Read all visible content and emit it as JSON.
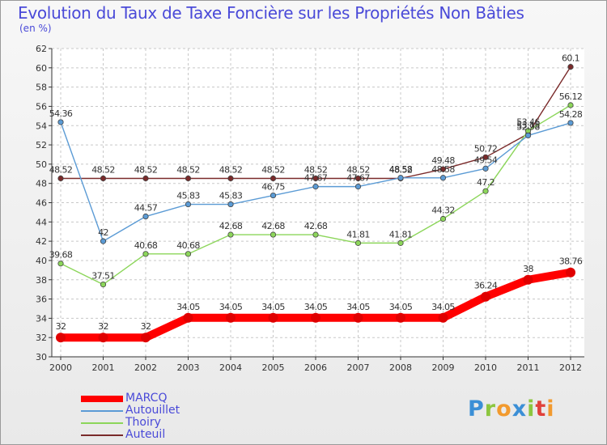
{
  "header": {
    "title": "Evolution du Taux de Taxe Foncière sur les Propriétés Non Bâties",
    "unit": "(en %)"
  },
  "logo": {
    "text": "Proxiti",
    "letters": [
      {
        "char": "P",
        "color": "#3b8fd6"
      },
      {
        "char": "r",
        "color": "#8cc63f"
      },
      {
        "char": "o",
        "color": "#f29a2e"
      },
      {
        "char": "x",
        "color": "#3b8fd6"
      },
      {
        "char": "i",
        "color": "#8cc63f"
      },
      {
        "char": "t",
        "color": "#e0413b"
      },
      {
        "char": "i",
        "color": "#f29a2e"
      }
    ]
  },
  "chart_data": {
    "type": "line",
    "title": "Evolution du Taux de Taxe Foncière sur les Propriétés Non Bâties",
    "ylabel": "(en %)",
    "xlabel": "",
    "ylim": [
      30,
      62
    ],
    "yticks": [
      "30",
      "32",
      "34",
      "36",
      "38",
      "40",
      "42",
      "44",
      "46",
      "48",
      "50",
      "52",
      "54",
      "56",
      "58",
      "60",
      "62"
    ],
    "categories": [
      "2000",
      "2001",
      "2002",
      "2003",
      "2004",
      "2005",
      "2006",
      "2007",
      "2008",
      "2009",
      "2010",
      "2011",
      "2012"
    ],
    "grid": true,
    "legend_position": "bottom-left",
    "series": [
      {
        "name": "Auteuil",
        "color": "#7a2a2a",
        "values": [
          48.52,
          48.52,
          48.52,
          48.52,
          48.52,
          48.52,
          48.52,
          48.52,
          48.52,
          49.48,
          50.72,
          53.15,
          60.1
        ],
        "labels": [
          "48.52",
          "48.52",
          "48.52",
          "48.52",
          "48.52",
          "48.52",
          "48.52",
          "48.52",
          "48.52",
          "49.48",
          "50.72",
          "53.15",
          "60.1"
        ]
      },
      {
        "name": "Thoiry",
        "color": "#8cd65a",
        "values": [
          39.68,
          37.51,
          40.68,
          40.68,
          42.68,
          42.68,
          42.68,
          41.81,
          41.81,
          44.32,
          47.2,
          53.46,
          56.12
        ],
        "labels": [
          "39.68",
          "37.51",
          "40.68",
          "40.68",
          "42.68",
          "42.68",
          "42.68",
          "41.81",
          "41.81",
          "44.32",
          "47.2",
          "53.46",
          "56.12"
        ]
      },
      {
        "name": "Autouillet",
        "color": "#5b9bd5",
        "values": [
          54.36,
          42,
          44.57,
          45.83,
          45.83,
          46.75,
          47.67,
          47.67,
          48.58,
          48.58,
          49.54,
          52.98,
          54.28
        ],
        "labels": [
          "54.36",
          "42",
          "44.57",
          "45.83",
          "45.83",
          "46.75",
          "47.67",
          "47.67",
          "48.58",
          "48.58",
          "49.54",
          "52.98",
          "54.28"
        ]
      },
      {
        "name": "MARCQ",
        "color": "#ff0000",
        "values": [
          32,
          32,
          32,
          34.05,
          34.05,
          34.05,
          34.05,
          34.05,
          34.05,
          34.05,
          36.24,
          38,
          38.76
        ],
        "labels": [
          "32",
          "32",
          "32",
          "34.05",
          "34.05",
          "34.05",
          "34.05",
          "34.05",
          "34.05",
          "34.05",
          "36.24",
          "38",
          "38.76"
        ]
      }
    ],
    "legend_order": [
      "MARCQ",
      "Autouillet",
      "Thoiry",
      "Auteuil"
    ]
  }
}
